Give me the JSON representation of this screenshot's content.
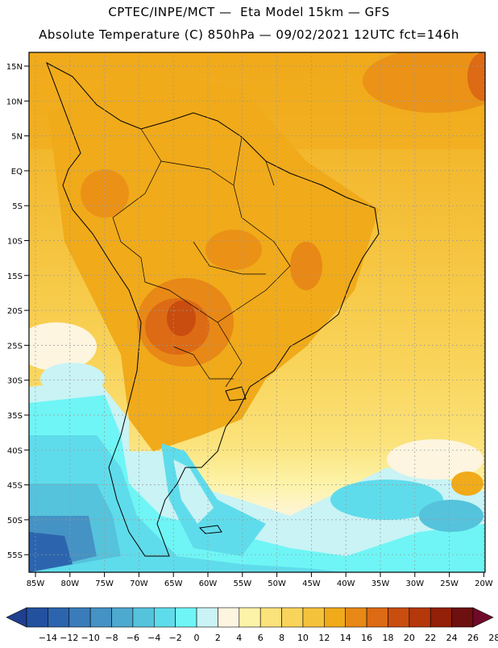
{
  "header": {
    "line1": "CPTEC/INPE/MCT —  Eta Model 15km — GFS",
    "line2": "Absolute Temperature (C) 850hPa — 09/02/2021 12UTC fct=146h"
  },
  "map": {
    "lat_labels": [
      "15N",
      "10N",
      "5N",
      "EQ",
      "5S",
      "10S",
      "15S",
      "20S",
      "25S",
      "30S",
      "35S",
      "40S",
      "45S",
      "50S",
      "55S"
    ],
    "lon_labels": [
      "85W",
      "80W",
      "75W",
      "70W",
      "65W",
      "60W",
      "55W",
      "50W",
      "45W",
      "40W",
      "35W",
      "30W",
      "25W",
      "20W"
    ]
  },
  "colorbar": {
    "labels": [
      "-14",
      "-12",
      "-10",
      "-8",
      "-6",
      "-4",
      "-2",
      "0",
      "2",
      "4",
      "6",
      "8",
      "10",
      "12",
      "14",
      "16",
      "18",
      "20",
      "22",
      "24",
      "26",
      "28"
    ],
    "colors": [
      "#1f3f8f",
      "#24519f",
      "#2c65ae",
      "#3a7cba",
      "#4592c4",
      "#4ea9d0",
      "#55c3dc",
      "#5fdceb",
      "#6ff5f5",
      "#c9f3f5",
      "#fdf5e0",
      "#fdf3a8",
      "#fbe27a",
      "#f9d45a",
      "#f5c23c",
      "#f0aa1a",
      "#e88816",
      "#dd6a14",
      "#c94d0e",
      "#b5380a",
      "#932008",
      "#6e1010",
      "#6f0b2a"
    ]
  }
}
